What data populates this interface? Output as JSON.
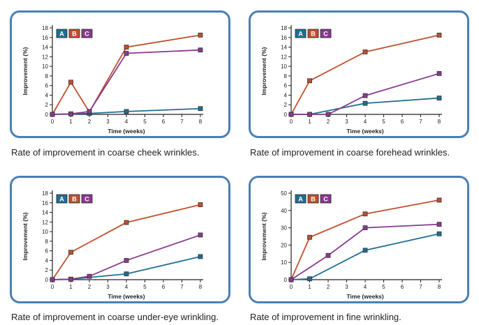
{
  "header_fragment": "",
  "colors": {
    "A": "#1f6f93",
    "B": "#c0502f",
    "C": "#8a3a8f",
    "border": "#4a7fb3",
    "axis": "#222222"
  },
  "legend": [
    "A",
    "B",
    "C"
  ],
  "chart_data": [
    {
      "type": "line",
      "caption": "Rate of improvement in coarse cheek wrinkles.",
      "xlabel": "Time (weeks)",
      "ylabel": "Improvement (%)",
      "xlim": [
        0,
        8
      ],
      "ylim": [
        0,
        18
      ],
      "xticks": [
        0,
        1,
        2,
        3,
        4,
        5,
        6,
        7,
        8
      ],
      "yticks": [
        0,
        2,
        4,
        6,
        8,
        10,
        12,
        14,
        16,
        18
      ],
      "series": [
        {
          "name": "A",
          "x": [
            0,
            1,
            2,
            4,
            8
          ],
          "y": [
            0,
            0.1,
            0.2,
            0.6,
            1.2
          ]
        },
        {
          "name": "B",
          "x": [
            0,
            1,
            2,
            4,
            8
          ],
          "y": [
            0,
            6.7,
            0.5,
            14,
            16.5
          ]
        },
        {
          "name": "C",
          "x": [
            0,
            1,
            2,
            4,
            8
          ],
          "y": [
            0,
            0.1,
            0.6,
            12.7,
            13.4
          ]
        }
      ]
    },
    {
      "type": "line",
      "caption": "Rate of improvement in coarse forehead wrinkles.",
      "xlabel": "Time (weeks)",
      "ylabel": "Improvement (%)",
      "xlim": [
        0,
        8
      ],
      "ylim": [
        0,
        18
      ],
      "xticks": [
        0,
        1,
        2,
        3,
        4,
        5,
        6,
        7,
        8
      ],
      "yticks": [
        0,
        2,
        4,
        6,
        8,
        10,
        12,
        14,
        16,
        18
      ],
      "series": [
        {
          "name": "A",
          "x": [
            0,
            1,
            4,
            8
          ],
          "y": [
            0,
            0,
            2.3,
            3.4
          ]
        },
        {
          "name": "B",
          "x": [
            0,
            1,
            4,
            8
          ],
          "y": [
            0,
            7,
            13,
            16.5
          ]
        },
        {
          "name": "C",
          "x": [
            0,
            1,
            2,
            4,
            8
          ],
          "y": [
            0,
            0,
            0,
            3.9,
            8.5
          ]
        }
      ]
    },
    {
      "type": "line",
      "caption": "Rate of improvement in coarse under-eye wrinkling.",
      "xlabel": "Time (weeks)",
      "ylabel": "Improvement (%)",
      "xlim": [
        0,
        8
      ],
      "ylim": [
        0,
        18
      ],
      "xticks": [
        0,
        1,
        2,
        3,
        4,
        5,
        6,
        7,
        8
      ],
      "yticks": [
        0,
        2,
        4,
        6,
        8,
        10,
        12,
        14,
        16,
        18
      ],
      "series": [
        {
          "name": "A",
          "x": [
            0,
            1,
            4,
            8
          ],
          "y": [
            0,
            0.1,
            1.2,
            4.8
          ]
        },
        {
          "name": "B",
          "x": [
            0,
            1,
            4,
            8
          ],
          "y": [
            0,
            5.7,
            11.9,
            15.6
          ]
        },
        {
          "name": "C",
          "x": [
            0,
            1,
            2,
            4,
            8
          ],
          "y": [
            0,
            0.1,
            0.7,
            4,
            9.3
          ]
        }
      ]
    },
    {
      "type": "line",
      "caption": "Rate of improvement in fine wrinkling.",
      "xlabel": "Time (weeks)",
      "ylabel": "Improvement (%)",
      "xlim": [
        0,
        8
      ],
      "ylim": [
        0,
        50
      ],
      "xticks": [
        0,
        1,
        2,
        3,
        4,
        5,
        6,
        7,
        8
      ],
      "yticks": [
        0,
        10,
        20,
        30,
        40,
        50
      ],
      "series": [
        {
          "name": "A",
          "x": [
            0,
            1,
            4,
            8
          ],
          "y": [
            0,
            0.5,
            17,
            26.5
          ]
        },
        {
          "name": "B",
          "x": [
            0,
            1,
            4,
            8
          ],
          "y": [
            0,
            24.5,
            38,
            46
          ]
        },
        {
          "name": "C",
          "x": [
            0,
            2,
            4,
            8
          ],
          "y": [
            0,
            14,
            30,
            32
          ]
        }
      ]
    }
  ]
}
